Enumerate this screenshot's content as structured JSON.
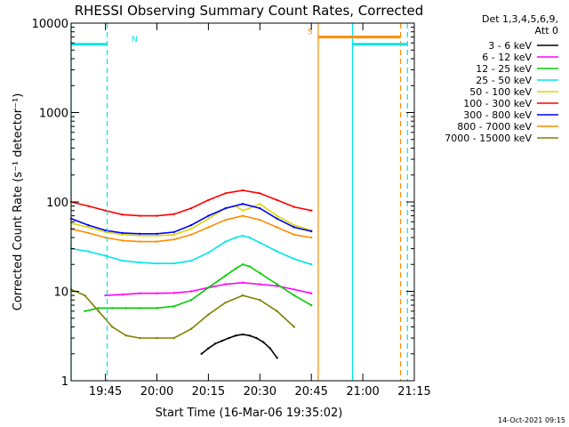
{
  "chart_data": {
    "type": "line",
    "title": "RHESSI Observing Summary Count Rates, Corrected",
    "xlabel": "Start Time (16-Mar-06 19:35:02)",
    "ylabel": "Corrected Count Rate (s⁻¹ detector⁻¹)",
    "yscale": "log",
    "ylim": [
      1,
      10000
    ],
    "x_unit": "minutes after 19:35:02",
    "xlim": [
      0,
      100
    ],
    "x_ticks": [
      {
        "x": 10,
        "label": "19:45"
      },
      {
        "x": 25,
        "label": "20:00"
      },
      {
        "x": 40,
        "label": "20:15"
      },
      {
        "x": 55,
        "label": "20:30"
      },
      {
        "x": 70,
        "label": "20:45"
      },
      {
        "x": 85,
        "label": "21:00"
      },
      {
        "x": 100,
        "label": "21:15"
      }
    ],
    "y_ticks": [
      {
        "y": 1,
        "label": "1"
      },
      {
        "y": 10,
        "label": "10"
      },
      {
        "y": 100,
        "label": "100"
      },
      {
        "y": 1000,
        "label": "1000"
      },
      {
        "y": 10000,
        "label": "10000"
      }
    ],
    "legend": {
      "placement": "top-right",
      "header1": "Det 1,3,4,5,6,9,",
      "header2": "Att 0"
    },
    "series": [
      {
        "name": "3 - 6 keV",
        "color": "#000000",
        "x": [
          38,
          40,
          42,
          44,
          46,
          48,
          50,
          52,
          54,
          56,
          58,
          60
        ],
        "y": [
          2,
          2.3,
          2.6,
          2.8,
          3,
          3.2,
          3.3,
          3.2,
          3,
          2.7,
          2.3,
          1.8
        ]
      },
      {
        "name": "6 - 12 keV",
        "color": "#ff00ff",
        "x": [
          10,
          15,
          20,
          25,
          30,
          35,
          40,
          45,
          50,
          55,
          60,
          65,
          70
        ],
        "y": [
          9,
          9.2,
          9.5,
          9.5,
          9.6,
          10,
          11,
          12,
          12.5,
          12,
          11.5,
          10.5,
          9.5
        ]
      },
      {
        "name": "12 - 25 keV",
        "color": "#00cc00",
        "x": [
          4,
          8,
          12,
          16,
          20,
          25,
          30,
          35,
          40,
          45,
          48,
          50,
          52,
          55,
          60,
          65,
          70
        ],
        "y": [
          6,
          6.5,
          6.5,
          6.5,
          6.5,
          6.5,
          6.8,
          8,
          11,
          15,
          18,
          20,
          19,
          16,
          12,
          9,
          7
        ]
      },
      {
        "name": "25 - 50 keV",
        "color": "#00e5e5",
        "x": [
          0,
          5,
          10,
          15,
          20,
          25,
          30,
          35,
          40,
          45,
          48,
          50,
          52,
          55,
          60,
          65,
          70
        ],
        "y": [
          30,
          28,
          25,
          22,
          21,
          20.5,
          20.5,
          22,
          27,
          36,
          40,
          42,
          40,
          35,
          28,
          23,
          20
        ]
      },
      {
        "name": "50 - 100 keV",
        "color": "#d9d900",
        "x": [
          0,
          5,
          10,
          15,
          20,
          25,
          30,
          35,
          40,
          45,
          48,
          50,
          52,
          55,
          60,
          65,
          70
        ],
        "y": [
          58,
          52,
          46,
          43,
          42,
          42,
          43,
          50,
          65,
          85,
          90,
          80,
          85,
          95,
          70,
          55,
          48
        ]
      },
      {
        "name": "100 - 300 keV",
        "color": "#ff0000",
        "x": [
          0,
          5,
          10,
          15,
          20,
          25,
          30,
          35,
          40,
          45,
          50,
          55,
          60,
          65,
          70
        ],
        "y": [
          100,
          90,
          80,
          72,
          70,
          70,
          73,
          85,
          105,
          125,
          135,
          125,
          105,
          88,
          80
        ]
      },
      {
        "name": "300 - 800 keV",
        "color": "#0000ff",
        "x": [
          0,
          5,
          10,
          15,
          20,
          25,
          30,
          35,
          40,
          45,
          50,
          55,
          60,
          65,
          70
        ],
        "y": [
          65,
          55,
          48,
          45,
          44,
          44,
          46,
          55,
          70,
          85,
          95,
          85,
          65,
          52,
          47
        ]
      },
      {
        "name": "800 - 7000 keV",
        "color": "#ff8c00",
        "x": [
          0,
          5,
          10,
          15,
          20,
          25,
          30,
          35,
          40,
          45,
          50,
          55,
          60,
          65,
          70
        ],
        "y": [
          50,
          45,
          40,
          37,
          36,
          36,
          38,
          43,
          52,
          63,
          70,
          63,
          52,
          43,
          40
        ]
      },
      {
        "name": "7000 - 15000 keV",
        "color": "#808000",
        "x": [
          0,
          4,
          8,
          12,
          16,
          20,
          25,
          30,
          35,
          40,
          45,
          50,
          55,
          60,
          65
        ],
        "y": [
          10.5,
          9,
          6,
          4,
          3.2,
          3,
          3,
          3,
          3.8,
          5.5,
          7.5,
          9,
          8,
          6,
          4
        ]
      }
    ],
    "markers": [
      {
        "label": "N",
        "color": "#00e5e5",
        "start": 0,
        "end": 10.5,
        "level": 5800
      },
      {
        "label": "S",
        "color": "#ff8c00",
        "start": 72,
        "end": 96,
        "level": 7000
      },
      {
        "label": "",
        "color": "#00e5e5",
        "start": 82,
        "end": 98,
        "level": 5800
      }
    ],
    "vlines": [
      {
        "x": 0,
        "color": "#00e5e5",
        "style": "solid"
      },
      {
        "x": 10.5,
        "color": "#00e5e5",
        "style": "dashed"
      },
      {
        "x": 72,
        "color": "#ff8c00",
        "style": "solid"
      },
      {
        "x": 82,
        "color": "#00e5e5",
        "style": "solid"
      },
      {
        "x": 96,
        "color": "#ff8c00",
        "style": "dashed"
      },
      {
        "x": 98,
        "color": "#00e5e5",
        "style": "dashed"
      }
    ],
    "footer": "14-Oct-2021 09:15"
  }
}
